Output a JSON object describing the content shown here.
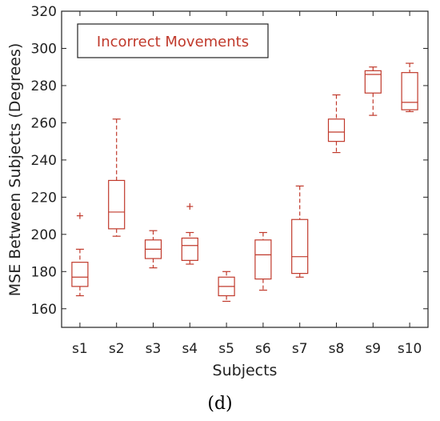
{
  "chart_data": {
    "type": "box",
    "legend_label": "Incorrect Movements",
    "xlabel": "Subjects",
    "ylabel": "MSE Between Subjects (Degrees)",
    "ylim": [
      150,
      320
    ],
    "yticks": [
      160,
      180,
      200,
      220,
      240,
      260,
      280,
      300,
      320
    ],
    "grid": false,
    "legend_position": "top-left",
    "categories": [
      "s1",
      "s2",
      "s3",
      "s4",
      "s5",
      "s6",
      "s7",
      "s8",
      "s9",
      "s10"
    ],
    "boxes": [
      {
        "category": "s1",
        "whisker_low": 167,
        "q1": 172,
        "median": 177,
        "q3": 185,
        "whisker_high": 192,
        "outliers": [
          210
        ]
      },
      {
        "category": "s2",
        "whisker_low": 199,
        "q1": 203,
        "median": 212,
        "q3": 229,
        "whisker_high": 262,
        "outliers": []
      },
      {
        "category": "s3",
        "whisker_low": 182,
        "q1": 187,
        "median": 192,
        "q3": 197,
        "whisker_high": 202,
        "outliers": []
      },
      {
        "category": "s4",
        "whisker_low": 184,
        "q1": 186,
        "median": 194,
        "q3": 198,
        "whisker_high": 201,
        "outliers": [
          215
        ]
      },
      {
        "category": "s5",
        "whisker_low": 164,
        "q1": 167,
        "median": 172,
        "q3": 177,
        "whisker_high": 180,
        "outliers": []
      },
      {
        "category": "s6",
        "whisker_low": 170,
        "q1": 176,
        "median": 189,
        "q3": 197,
        "whisker_high": 201,
        "outliers": []
      },
      {
        "category": "s7",
        "whisker_low": 177,
        "q1": 179,
        "median": 188,
        "q3": 208,
        "whisker_high": 226,
        "outliers": []
      },
      {
        "category": "s8",
        "whisker_low": 244,
        "q1": 250,
        "median": 255,
        "q3": 262,
        "whisker_high": 275,
        "outliers": []
      },
      {
        "category": "s9",
        "whisker_low": 264,
        "q1": 276,
        "median": 286,
        "q3": 288,
        "whisker_high": 290,
        "outliers": []
      },
      {
        "category": "s10",
        "whisker_low": 266,
        "q1": 267,
        "median": 271,
        "q3": 287,
        "whisker_high": 292,
        "outliers": []
      }
    ],
    "colors": {
      "box": "#c0392b",
      "axis": "#222222",
      "legend_border": "#222222"
    }
  },
  "panel_label": "(d)"
}
